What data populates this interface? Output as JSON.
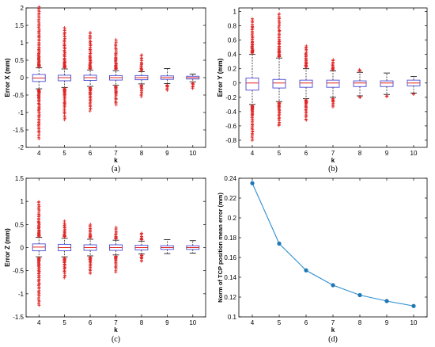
{
  "chart_data": [
    {
      "type": "box",
      "panel_label": "(a)",
      "xlabel": "k",
      "ylabel": "Error X (mm)",
      "ylim": [
        -2,
        2
      ],
      "yticks": [
        -2,
        -1.5,
        -1,
        -0.5,
        0,
        0.5,
        1,
        1.5,
        2
      ],
      "categories": [
        "4",
        "5",
        "6",
        "7",
        "8",
        "9",
        "10"
      ],
      "boxes": [
        {
          "k": 4,
          "whisker_low": -0.32,
          "q1": -0.11,
          "median": -0.01,
          "q3": 0.09,
          "whisker_high": 0.28,
          "outlier_low_min": -1.75,
          "outlier_high_max": 2.02
        },
        {
          "k": 5,
          "whisker_low": -0.28,
          "q1": -0.09,
          "median": 0.0,
          "q3": 0.07,
          "whisker_high": 0.25,
          "outlier_low_min": -1.2,
          "outlier_high_max": 1.42
        },
        {
          "k": 6,
          "whisker_low": -0.25,
          "q1": -0.08,
          "median": 0.0,
          "q3": 0.07,
          "whisker_high": 0.22,
          "outlier_low_min": -0.95,
          "outlier_high_max": 1.3
        },
        {
          "k": 7,
          "whisker_low": -0.22,
          "q1": -0.07,
          "median": 0.0,
          "q3": 0.06,
          "whisker_high": 0.2,
          "outlier_low_min": -0.78,
          "outlier_high_max": 1.08
        },
        {
          "k": 8,
          "whisker_low": -0.18,
          "q1": -0.06,
          "median": 0.0,
          "q3": 0.06,
          "whisker_high": 0.17,
          "outlier_low_min": -0.55,
          "outlier_high_max": 0.65
        },
        {
          "k": 9,
          "whisker_low": -0.17,
          "q1": -0.05,
          "median": 0.0,
          "q3": 0.05,
          "whisker_high": 0.26,
          "outlier_low_min": -0.36,
          "outlier_high_max": 0.26
        },
        {
          "k": 10,
          "whisker_low": -0.12,
          "q1": -0.04,
          "median": 0.0,
          "q3": 0.04,
          "whisker_high": 0.1,
          "outlier_low_min": -0.32,
          "outlier_high_max": 0.1
        }
      ]
    },
    {
      "type": "box",
      "panel_label": "(b)",
      "xlabel": "k",
      "ylabel": "Error Y (mm)",
      "ylim": [
        -0.9,
        1.05
      ],
      "yticks": [
        -0.8,
        -0.6,
        -0.4,
        -0.2,
        0,
        0.2,
        0.4,
        0.6,
        0.8,
        1
      ],
      "categories": [
        "4",
        "5",
        "6",
        "7",
        "8",
        "9",
        "10"
      ],
      "boxes": [
        {
          "k": 4,
          "whisker_low": -0.3,
          "q1": -0.1,
          "median": 0.0,
          "q3": 0.07,
          "whisker_high": 0.4,
          "outlier_low_min": -0.8,
          "outlier_high_max": 0.9
        },
        {
          "k": 5,
          "whisker_low": -0.26,
          "q1": -0.07,
          "median": 0.0,
          "q3": 0.05,
          "whisker_high": 0.35,
          "outlier_low_min": -0.6,
          "outlier_high_max": 0.97
        },
        {
          "k": 6,
          "whisker_low": -0.22,
          "q1": -0.06,
          "median": 0.0,
          "q3": 0.04,
          "whisker_high": 0.2,
          "outlier_low_min": -0.52,
          "outlier_high_max": 0.52
        },
        {
          "k": 7,
          "whisker_low": -0.2,
          "q1": -0.06,
          "median": 0.0,
          "q3": 0.04,
          "whisker_high": 0.17,
          "outlier_low_min": -0.33,
          "outlier_high_max": 0.33
        },
        {
          "k": 8,
          "whisker_low": -0.18,
          "q1": -0.05,
          "median": 0.0,
          "q3": 0.03,
          "whisker_high": 0.15,
          "outlier_low_min": -0.2,
          "outlier_high_max": 0.19
        },
        {
          "k": 9,
          "whisker_low": -0.16,
          "q1": -0.05,
          "median": 0.0,
          "q3": 0.03,
          "whisker_high": 0.14,
          "outlier_low_min": -0.19,
          "outlier_high_max": 0.14
        },
        {
          "k": 10,
          "whisker_low": -0.14,
          "q1": -0.04,
          "median": 0.0,
          "q3": 0.04,
          "whisker_high": 0.09,
          "outlier_low_min": -0.16,
          "outlier_high_max": 0.09
        }
      ]
    },
    {
      "type": "box",
      "panel_label": "(c)",
      "xlabel": "k",
      "ylabel": "Error Z (mm)",
      "ylim": [
        -1.5,
        1.5
      ],
      "yticks": [
        -1.5,
        -1,
        -0.5,
        0,
        0.5,
        1,
        1.5
      ],
      "categories": [
        "4",
        "5",
        "6",
        "7",
        "8",
        "9",
        "10"
      ],
      "boxes": [
        {
          "k": 4,
          "whisker_low": -0.2,
          "q1": -0.07,
          "median": 0.01,
          "q3": 0.08,
          "whisker_high": 0.22,
          "outlier_low_min": -1.25,
          "outlier_high_max": 1.0
        },
        {
          "k": 5,
          "whisker_low": -0.2,
          "q1": -0.07,
          "median": 0.0,
          "q3": 0.07,
          "whisker_high": 0.2,
          "outlier_low_min": -0.65,
          "outlier_high_max": 0.57
        },
        {
          "k": 6,
          "whisker_low": -0.18,
          "q1": -0.06,
          "median": 0.0,
          "q3": 0.06,
          "whisker_high": 0.18,
          "outlier_low_min": -0.56,
          "outlier_high_max": 0.5
        },
        {
          "k": 7,
          "whisker_low": -0.16,
          "q1": -0.06,
          "median": 0.0,
          "q3": 0.06,
          "whisker_high": 0.16,
          "outlier_low_min": -0.52,
          "outlier_high_max": 0.43
        },
        {
          "k": 8,
          "whisker_low": -0.14,
          "q1": -0.05,
          "median": 0.0,
          "q3": 0.05,
          "whisker_high": 0.14,
          "outlier_low_min": -0.3,
          "outlier_high_max": 0.32
        },
        {
          "k": 9,
          "whisker_low": -0.13,
          "q1": -0.04,
          "median": 0.0,
          "q3": 0.04,
          "whisker_high": 0.17,
          "outlier_low_min": -0.13,
          "outlier_high_max": 0.17
        },
        {
          "k": 10,
          "whisker_low": -0.12,
          "q1": -0.04,
          "median": 0.0,
          "q3": 0.04,
          "whisker_high": 0.15,
          "outlier_low_min": -0.12,
          "outlier_high_max": 0.15
        }
      ]
    },
    {
      "type": "line",
      "panel_label": "(d)",
      "xlabel": "k",
      "ylabel": "Norm of TCP position mean error (mm)",
      "ylim": [
        0.1,
        0.24
      ],
      "yticks": [
        0.1,
        0.12,
        0.14,
        0.16,
        0.18,
        0.2,
        0.22,
        0.24
      ],
      "x": [
        4,
        5,
        6,
        7,
        8,
        9,
        10
      ],
      "y": [
        0.235,
        0.174,
        0.147,
        0.132,
        0.122,
        0.116,
        0.111
      ]
    }
  ],
  "colors": {
    "box": "#4a4ad6",
    "median": "#e02424",
    "outlier": "#e02424",
    "whisker": "#000000",
    "line": "#2f8fd1",
    "marker": "#1f77b4"
  }
}
